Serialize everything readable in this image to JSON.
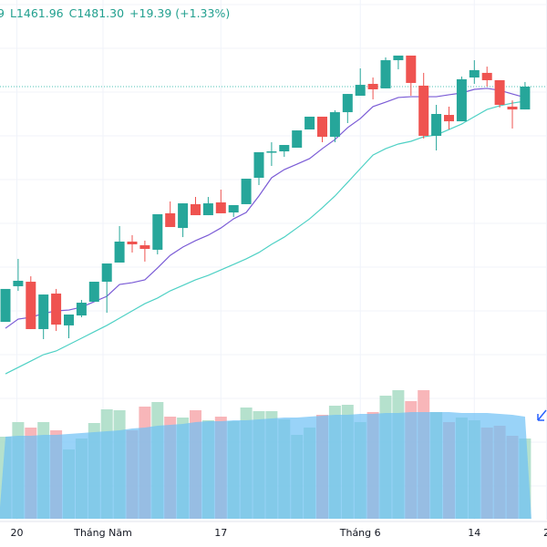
{
  "legend": {
    "partial_high": "9",
    "low": "L1461.96",
    "close": "C1481.30",
    "change": "+19.39 (+1.33%)"
  },
  "colors": {
    "up": "#26a69a",
    "down": "#ef5350",
    "ma_fast": "#7b5cd6",
    "ma_slow": "#4fd1c5",
    "vol_up": "#a8dcc4",
    "vol_down": "#f7a9ad",
    "vol_ma": "#6ec1f5",
    "grid": "#f0f3fa",
    "arrow": "#2962ff"
  },
  "chart_data": {
    "type": "candlestick",
    "price_range": [
      1231.05,
      1554.45
    ],
    "last_close": 1481.3,
    "candles": [
      [
        1282.6,
        1310.4,
        1282.6,
        1310.4
      ],
      [
        1312.7,
        1335.8,
        1308.8,
        1317.3
      ],
      [
        1316.5,
        1321.1,
        1276.5,
        1276.5
      ],
      [
        1276.5,
        1305.7,
        1268.0,
        1305.7
      ],
      [
        1306.5,
        1310.4,
        1274.9,
        1280.3
      ],
      [
        1279.6,
        1288.8,
        1268.8,
        1288.8
      ],
      [
        1288.0,
        1301.1,
        1286.5,
        1298.8
      ],
      [
        1299.6,
        1316.5,
        1299.6,
        1316.5
      ],
      [
        1316.5,
        1331.9,
        1290.3,
        1331.9
      ],
      [
        1332.7,
        1363.5,
        1332.7,
        1350.4
      ],
      [
        1350.4,
        1355.8,
        1341.2,
        1348.1
      ],
      [
        1347.3,
        1351.2,
        1333.5,
        1344.2
      ],
      [
        1343.5,
        1373.5,
        1339.6,
        1373.5
      ],
      [
        1374.3,
        1384.3,
        1362.7,
        1362.7
      ],
      [
        1361.9,
        1382.7,
        1354.2,
        1382.7
      ],
      [
        1382.0,
        1388.1,
        1372.7,
        1372.7
      ],
      [
        1372.7,
        1388.1,
        1372.7,
        1382.7
      ],
      [
        1383.5,
        1394.3,
        1374.3,
        1374.3
      ],
      [
        1375.0,
        1381.2,
        1371.2,
        1381.2
      ],
      [
        1382.0,
        1403.5,
        1382.0,
        1403.5
      ],
      [
        1404.3,
        1425.9,
        1398.1,
        1425.9
      ],
      [
        1425.9,
        1434.3,
        1414.3,
        1426.6
      ],
      [
        1426.6,
        1432.0,
        1422.0,
        1432.0
      ],
      [
        1429.7,
        1444.3,
        1429.7,
        1444.3
      ],
      [
        1445.1,
        1455.9,
        1445.1,
        1455.9
      ],
      [
        1455.9,
        1455.9,
        1434.3,
        1438.9
      ],
      [
        1438.9,
        1461.3,
        1434.3,
        1459.7
      ],
      [
        1459.7,
        1475.1,
        1450.5,
        1475.1
      ],
      [
        1473.6,
        1496.7,
        1473.6,
        1482.8
      ],
      [
        1483.6,
        1489.0,
        1470.5,
        1479.0
      ],
      [
        1479.8,
        1505.9,
        1479.8,
        1503.6
      ],
      [
        1503.6,
        1507.5,
        1495.9,
        1507.5
      ],
      [
        1507.5,
        1507.5,
        1473.6,
        1484.4
      ],
      [
        1482.1,
        1492.9,
        1437.4,
        1439.7
      ],
      [
        1439.7,
        1465.9,
        1427.4,
        1458.2
      ],
      [
        1457.4,
        1464.4,
        1445.1,
        1452.0
      ],
      [
        1452.0,
        1489.8,
        1452.0,
        1487.5
      ],
      [
        1489.0,
        1503.6,
        1483.6,
        1495.2
      ],
      [
        1492.9,
        1498.2,
        1481.3,
        1486.7
      ],
      [
        1486.7,
        1486.7,
        1463.6,
        1465.9
      ],
      [
        1464.4,
        1469.7,
        1445.9,
        1462.0
      ],
      [
        1462.0,
        1485.2,
        1462.0,
        1481.3
      ]
    ],
    "ma_fast": [
      1277.2,
      1284.9,
      1286.5,
      1289.6,
      1291.9,
      1292.6,
      1295.0,
      1299.6,
      1304.2,
      1314.2,
      1315.7,
      1318.1,
      1328.1,
      1338.8,
      1345.8,
      1351.2,
      1355.8,
      1361.9,
      1369.6,
      1375.0,
      1388.9,
      1404.3,
      1411.2,
      1415.8,
      1420.5,
      1428.9,
      1436.6,
      1446.6,
      1454.3,
      1464.4,
      1468.2,
      1472.1,
      1472.8,
      1472.8,
      1472.8,
      1474.4,
      1475.9,
      1479.0,
      1479.8,
      1478.2,
      1475.1,
      1472.1
    ],
    "ma_slow": [
      1238.7,
      1244.1,
      1249.5,
      1254.9,
      1258.0,
      1263.4,
      1268.8,
      1274.2,
      1279.6,
      1285.7,
      1291.9,
      1298.0,
      1302.7,
      1308.8,
      1313.4,
      1318.1,
      1321.9,
      1326.5,
      1331.1,
      1335.8,
      1341.2,
      1348.1,
      1354.2,
      1361.9,
      1369.6,
      1378.9,
      1388.9,
      1400.4,
      1412.0,
      1423.5,
      1428.9,
      1432.8,
      1435.1,
      1438.9,
      1440.5,
      1445.1,
      1449.7,
      1455.9,
      1462.0,
      1465.1,
      1467.4,
      1469.0
    ],
    "volume": [
      90,
      106,
      100,
      106,
      97,
      76,
      88,
      105,
      120,
      119,
      97,
      123,
      128,
      112,
      111,
      119,
      108,
      112,
      107,
      122,
      118,
      118,
      109,
      92,
      100,
      114,
      124,
      125,
      106,
      117,
      135,
      141,
      129,
      141,
      117,
      106,
      111,
      108,
      100,
      102,
      91,
      88
    ],
    "volume_ma": [
      90,
      91,
      91,
      92,
      92,
      93,
      94,
      95,
      96,
      97,
      99,
      100,
      102,
      103,
      104,
      106,
      107,
      107,
      108,
      108,
      109,
      110,
      111,
      111,
      112,
      113,
      114,
      114,
      115,
      115,
      116,
      116,
      117,
      117,
      117,
      117,
      116,
      116,
      116,
      115,
      114,
      112
    ],
    "x_labels": [
      {
        "index": 0.9,
        "label": "20"
      },
      {
        "index": 7.7,
        "label": "Tháng Năm"
      },
      {
        "index": 17,
        "label": "17"
      },
      {
        "index": 28,
        "label": "Tháng 6"
      },
      {
        "index": 37,
        "label": "14"
      },
      {
        "index": 42.7,
        "label": "2"
      }
    ],
    "icon": "arrow-down-left-icon"
  }
}
